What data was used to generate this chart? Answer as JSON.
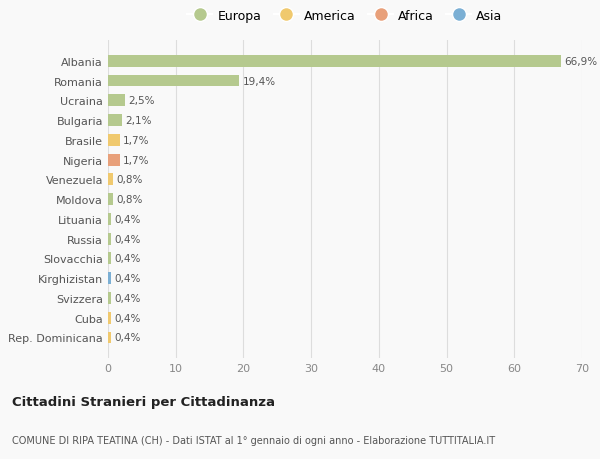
{
  "countries": [
    "Albania",
    "Romania",
    "Ucraina",
    "Bulgaria",
    "Brasile",
    "Nigeria",
    "Venezuela",
    "Moldova",
    "Lituania",
    "Russia",
    "Slovacchia",
    "Kirghizistan",
    "Svizzera",
    "Cuba",
    "Rep. Dominicana"
  ],
  "values": [
    66.9,
    19.4,
    2.5,
    2.1,
    1.7,
    1.7,
    0.8,
    0.8,
    0.4,
    0.4,
    0.4,
    0.4,
    0.4,
    0.4,
    0.4
  ],
  "labels": [
    "66,9%",
    "19,4%",
    "2,5%",
    "2,1%",
    "1,7%",
    "1,7%",
    "0,8%",
    "0,8%",
    "0,4%",
    "0,4%",
    "0,4%",
    "0,4%",
    "0,4%",
    "0,4%",
    "0,4%"
  ],
  "continents": [
    "Europa",
    "Europa",
    "Europa",
    "Europa",
    "America",
    "Africa",
    "America",
    "Europa",
    "Europa",
    "Europa",
    "Europa",
    "Asia",
    "Europa",
    "America",
    "America"
  ],
  "continent_colors": {
    "Europa": "#b5c98e",
    "America": "#f0c96e",
    "Africa": "#e8a07a",
    "Asia": "#7bafd4"
  },
  "legend_items": [
    "Europa",
    "America",
    "Africa",
    "Asia"
  ],
  "legend_colors": [
    "#b5c98e",
    "#f0c96e",
    "#e8a07a",
    "#7bafd4"
  ],
  "xlim": [
    0,
    70
  ],
  "xticks": [
    0,
    10,
    20,
    30,
    40,
    50,
    60,
    70
  ],
  "title": "Cittadini Stranieri per Cittadinanza",
  "subtitle": "COMUNE DI RIPA TEATINA (CH) - Dati ISTAT al 1° gennaio di ogni anno - Elaborazione TUTTITALIA.IT",
  "background_color": "#f9f9f9",
  "grid_color": "#dddddd",
  "bar_height": 0.6
}
